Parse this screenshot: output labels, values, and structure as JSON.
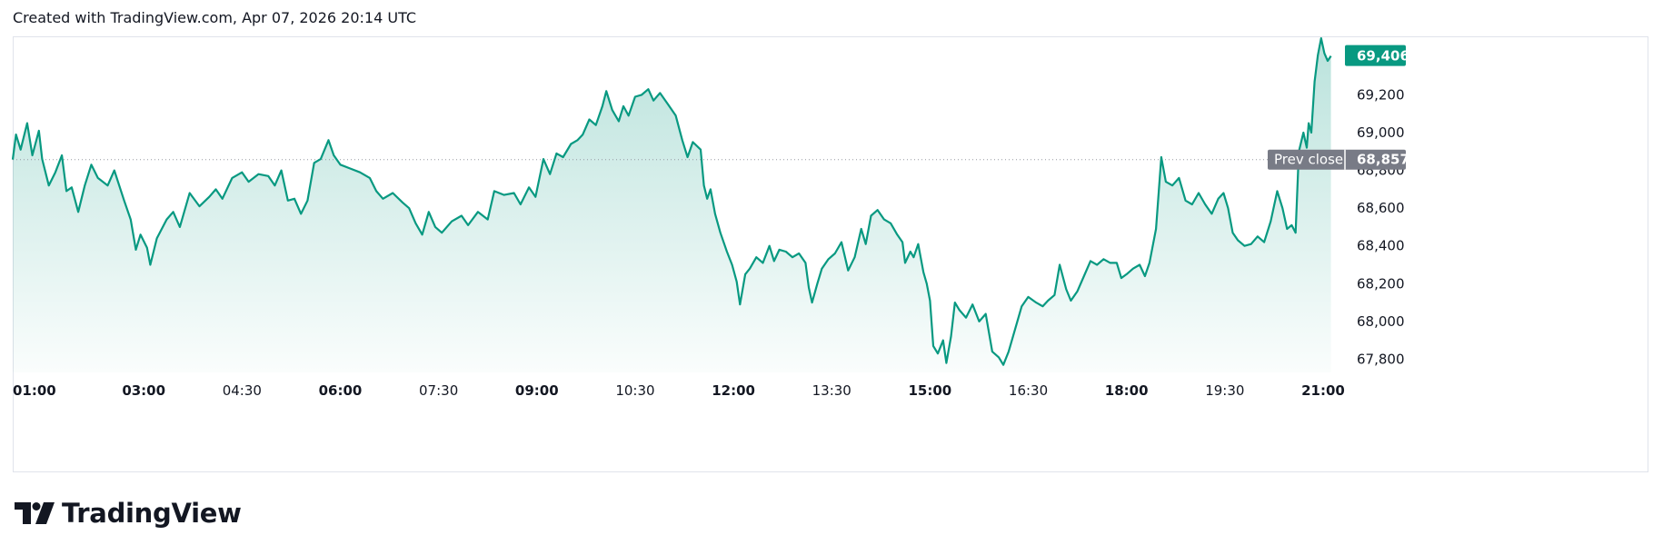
{
  "header": {
    "created_text": "Created with TradingView.com, Apr 07, 2026 20:14 UTC"
  },
  "logo": {
    "text": "TradingView",
    "icon": "tradingview-logo-icon"
  },
  "colors": {
    "line": "#089981",
    "badge": "#089981",
    "prev_close_badge": "#787b86",
    "text": "#131722",
    "grid_border": "#e0e3eb"
  },
  "chart_data": {
    "type": "area",
    "title": "",
    "xlabel": "",
    "ylabel": "",
    "x_ticks": [
      {
        "label": "01:00",
        "bold": true,
        "hours": 0
      },
      {
        "label": "03:00",
        "bold": true,
        "hours": 2
      },
      {
        "label": "04:30",
        "bold": false,
        "hours": 3.5
      },
      {
        "label": "06:00",
        "bold": true,
        "hours": 5
      },
      {
        "label": "07:30",
        "bold": false,
        "hours": 6.5
      },
      {
        "label": "09:00",
        "bold": true,
        "hours": 8
      },
      {
        "label": "10:30",
        "bold": false,
        "hours": 9.5
      },
      {
        "label": "12:00",
        "bold": true,
        "hours": 11
      },
      {
        "label": "13:30",
        "bold": false,
        "hours": 12.5
      },
      {
        "label": "15:00",
        "bold": true,
        "hours": 14
      },
      {
        "label": "16:30",
        "bold": false,
        "hours": 15.5
      },
      {
        "label": "18:00",
        "bold": true,
        "hours": 17
      },
      {
        "label": "19:30",
        "bold": false,
        "hours": 18.5
      },
      {
        "label": "21:00",
        "bold": true,
        "hours": 20
      }
    ],
    "y_ticks": [
      67800,
      68000,
      68200,
      68400,
      68600,
      68800,
      69000,
      69200
    ],
    "y_tick_labels": [
      "67,800",
      "68,000",
      "68,200",
      "68,400",
      "68,600",
      "68,800",
      "69,000",
      "69,200"
    ],
    "ylim": [
      67730,
      69510
    ],
    "xlim_hours": [
      0,
      20.25
    ],
    "last_price": {
      "value": 69406,
      "label": "69,406"
    },
    "prev_close": {
      "value": 68857,
      "label": "68,857",
      "text": "Prev close"
    },
    "series": [
      {
        "points": [
          [
            0.0,
            68857
          ],
          [
            0.05,
            68990
          ],
          [
            0.12,
            68910
          ],
          [
            0.22,
            69050
          ],
          [
            0.3,
            68880
          ],
          [
            0.4,
            69010
          ],
          [
            0.45,
            68860
          ],
          [
            0.55,
            68720
          ],
          [
            0.65,
            68790
          ],
          [
            0.75,
            68880
          ],
          [
            0.82,
            68690
          ],
          [
            0.9,
            68710
          ],
          [
            1.0,
            68580
          ],
          [
            1.1,
            68720
          ],
          [
            1.2,
            68830
          ],
          [
            1.3,
            68760
          ],
          [
            1.45,
            68720
          ],
          [
            1.55,
            68800
          ],
          [
            1.7,
            68640
          ],
          [
            1.8,
            68540
          ],
          [
            1.88,
            68380
          ],
          [
            1.95,
            68460
          ],
          [
            2.05,
            68390
          ],
          [
            2.1,
            68300
          ],
          [
            2.2,
            68440
          ],
          [
            2.35,
            68540
          ],
          [
            2.45,
            68580
          ],
          [
            2.55,
            68500
          ],
          [
            2.7,
            68680
          ],
          [
            2.85,
            68610
          ],
          [
            3.0,
            68660
          ],
          [
            3.1,
            68700
          ],
          [
            3.2,
            68650
          ],
          [
            3.35,
            68760
          ],
          [
            3.5,
            68790
          ],
          [
            3.6,
            68740
          ],
          [
            3.75,
            68780
          ],
          [
            3.9,
            68770
          ],
          [
            4.0,
            68720
          ],
          [
            4.1,
            68800
          ],
          [
            4.2,
            68640
          ],
          [
            4.3,
            68650
          ],
          [
            4.4,
            68570
          ],
          [
            4.5,
            68640
          ],
          [
            4.6,
            68840
          ],
          [
            4.7,
            68860
          ],
          [
            4.82,
            68960
          ],
          [
            4.9,
            68880
          ],
          [
            5.0,
            68830
          ],
          [
            5.15,
            68810
          ],
          [
            5.3,
            68790
          ],
          [
            5.45,
            68760
          ],
          [
            5.55,
            68690
          ],
          [
            5.65,
            68650
          ],
          [
            5.8,
            68680
          ],
          [
            5.95,
            68630
          ],
          [
            6.05,
            68600
          ],
          [
            6.15,
            68520
          ],
          [
            6.25,
            68460
          ],
          [
            6.35,
            68580
          ],
          [
            6.45,
            68500
          ],
          [
            6.55,
            68470
          ],
          [
            6.7,
            68530
          ],
          [
            6.85,
            68560
          ],
          [
            6.95,
            68510
          ],
          [
            7.1,
            68580
          ],
          [
            7.25,
            68540
          ],
          [
            7.35,
            68690
          ],
          [
            7.5,
            68670
          ],
          [
            7.65,
            68680
          ],
          [
            7.75,
            68620
          ],
          [
            7.88,
            68710
          ],
          [
            7.98,
            68660
          ],
          [
            8.1,
            68860
          ],
          [
            8.2,
            68780
          ],
          [
            8.3,
            68890
          ],
          [
            8.4,
            68870
          ],
          [
            8.52,
            68940
          ],
          [
            8.62,
            68960
          ],
          [
            8.7,
            68990
          ],
          [
            8.8,
            69070
          ],
          [
            8.9,
            69040
          ],
          [
            9.0,
            69140
          ],
          [
            9.06,
            69220
          ],
          [
            9.15,
            69120
          ],
          [
            9.25,
            69060
          ],
          [
            9.32,
            69140
          ],
          [
            9.4,
            69090
          ],
          [
            9.5,
            69190
          ],
          [
            9.6,
            69200
          ],
          [
            9.7,
            69230
          ],
          [
            9.78,
            69170
          ],
          [
            9.88,
            69210
          ],
          [
            10.0,
            69150
          ],
          [
            10.12,
            69090
          ],
          [
            10.22,
            68960
          ],
          [
            10.3,
            68870
          ],
          [
            10.38,
            68950
          ],
          [
            10.5,
            68910
          ],
          [
            10.55,
            68720
          ],
          [
            10.6,
            68650
          ],
          [
            10.65,
            68700
          ],
          [
            10.72,
            68570
          ],
          [
            10.8,
            68470
          ],
          [
            10.9,
            68370
          ],
          [
            10.98,
            68300
          ],
          [
            11.05,
            68210
          ],
          [
            11.1,
            68090
          ],
          [
            11.18,
            68250
          ],
          [
            11.25,
            68280
          ],
          [
            11.35,
            68340
          ],
          [
            11.45,
            68310
          ],
          [
            11.55,
            68400
          ],
          [
            11.62,
            68320
          ],
          [
            11.7,
            68380
          ],
          [
            11.8,
            68370
          ],
          [
            11.9,
            68340
          ],
          [
            12.0,
            68360
          ],
          [
            12.1,
            68310
          ],
          [
            12.15,
            68180
          ],
          [
            12.2,
            68100
          ],
          [
            12.28,
            68200
          ],
          [
            12.35,
            68280
          ],
          [
            12.45,
            68330
          ],
          [
            12.55,
            68360
          ],
          [
            12.65,
            68420
          ],
          [
            12.75,
            68270
          ],
          [
            12.85,
            68340
          ],
          [
            12.95,
            68490
          ],
          [
            13.02,
            68410
          ],
          [
            13.1,
            68560
          ],
          [
            13.2,
            68590
          ],
          [
            13.3,
            68540
          ],
          [
            13.4,
            68520
          ],
          [
            13.5,
            68460
          ],
          [
            13.58,
            68420
          ],
          [
            13.62,
            68310
          ],
          [
            13.7,
            68370
          ],
          [
            13.75,
            68340
          ],
          [
            13.82,
            68410
          ],
          [
            13.9,
            68260
          ],
          [
            13.95,
            68200
          ],
          [
            14.0,
            68110
          ],
          [
            14.05,
            67870
          ],
          [
            14.12,
            67830
          ],
          [
            14.2,
            67900
          ],
          [
            14.25,
            67780
          ],
          [
            14.32,
            67920
          ],
          [
            14.38,
            68100
          ],
          [
            14.45,
            68060
          ],
          [
            14.55,
            68020
          ],
          [
            14.65,
            68090
          ],
          [
            14.75,
            68000
          ],
          [
            14.85,
            68040
          ],
          [
            14.95,
            67840
          ],
          [
            15.05,
            67810
          ],
          [
            15.12,
            67770
          ],
          [
            15.2,
            67840
          ],
          [
            15.3,
            67960
          ],
          [
            15.4,
            68080
          ],
          [
            15.5,
            68130
          ],
          [
            15.62,
            68100
          ],
          [
            15.72,
            68080
          ],
          [
            15.8,
            68110
          ],
          [
            15.9,
            68140
          ],
          [
            15.98,
            68300
          ],
          [
            16.08,
            68170
          ],
          [
            16.15,
            68110
          ],
          [
            16.25,
            68160
          ],
          [
            16.35,
            68240
          ],
          [
            16.45,
            68320
          ],
          [
            16.55,
            68300
          ],
          [
            16.65,
            68330
          ],
          [
            16.75,
            68310
          ],
          [
            16.85,
            68310
          ],
          [
            16.92,
            68230
          ],
          [
            17.0,
            68250
          ],
          [
            17.1,
            68280
          ],
          [
            17.2,
            68300
          ],
          [
            17.28,
            68240
          ],
          [
            17.35,
            68310
          ],
          [
            17.45,
            68490
          ],
          [
            17.53,
            68870
          ],
          [
            17.6,
            68740
          ],
          [
            17.7,
            68720
          ],
          [
            17.8,
            68760
          ],
          [
            17.9,
            68640
          ],
          [
            18.0,
            68620
          ],
          [
            18.1,
            68680
          ],
          [
            18.2,
            68620
          ],
          [
            18.3,
            68570
          ],
          [
            18.4,
            68650
          ],
          [
            18.48,
            68680
          ],
          [
            18.55,
            68600
          ],
          [
            18.62,
            68470
          ],
          [
            18.7,
            68430
          ],
          [
            18.8,
            68400
          ],
          [
            18.9,
            68410
          ],
          [
            19.0,
            68450
          ],
          [
            19.1,
            68420
          ],
          [
            19.2,
            68530
          ],
          [
            19.3,
            68690
          ],
          [
            19.38,
            68600
          ],
          [
            19.45,
            68490
          ],
          [
            19.52,
            68510
          ],
          [
            19.58,
            68470
          ],
          [
            19.63,
            68900
          ],
          [
            19.7,
            69000
          ],
          [
            19.75,
            68920
          ],
          [
            19.78,
            69050
          ],
          [
            19.82,
            69000
          ],
          [
            19.87,
            69270
          ],
          [
            19.92,
            69410
          ],
          [
            19.97,
            69500
          ],
          [
            20.02,
            69420
          ],
          [
            20.07,
            69380
          ],
          [
            20.12,
            69406
          ]
        ]
      }
    ]
  }
}
